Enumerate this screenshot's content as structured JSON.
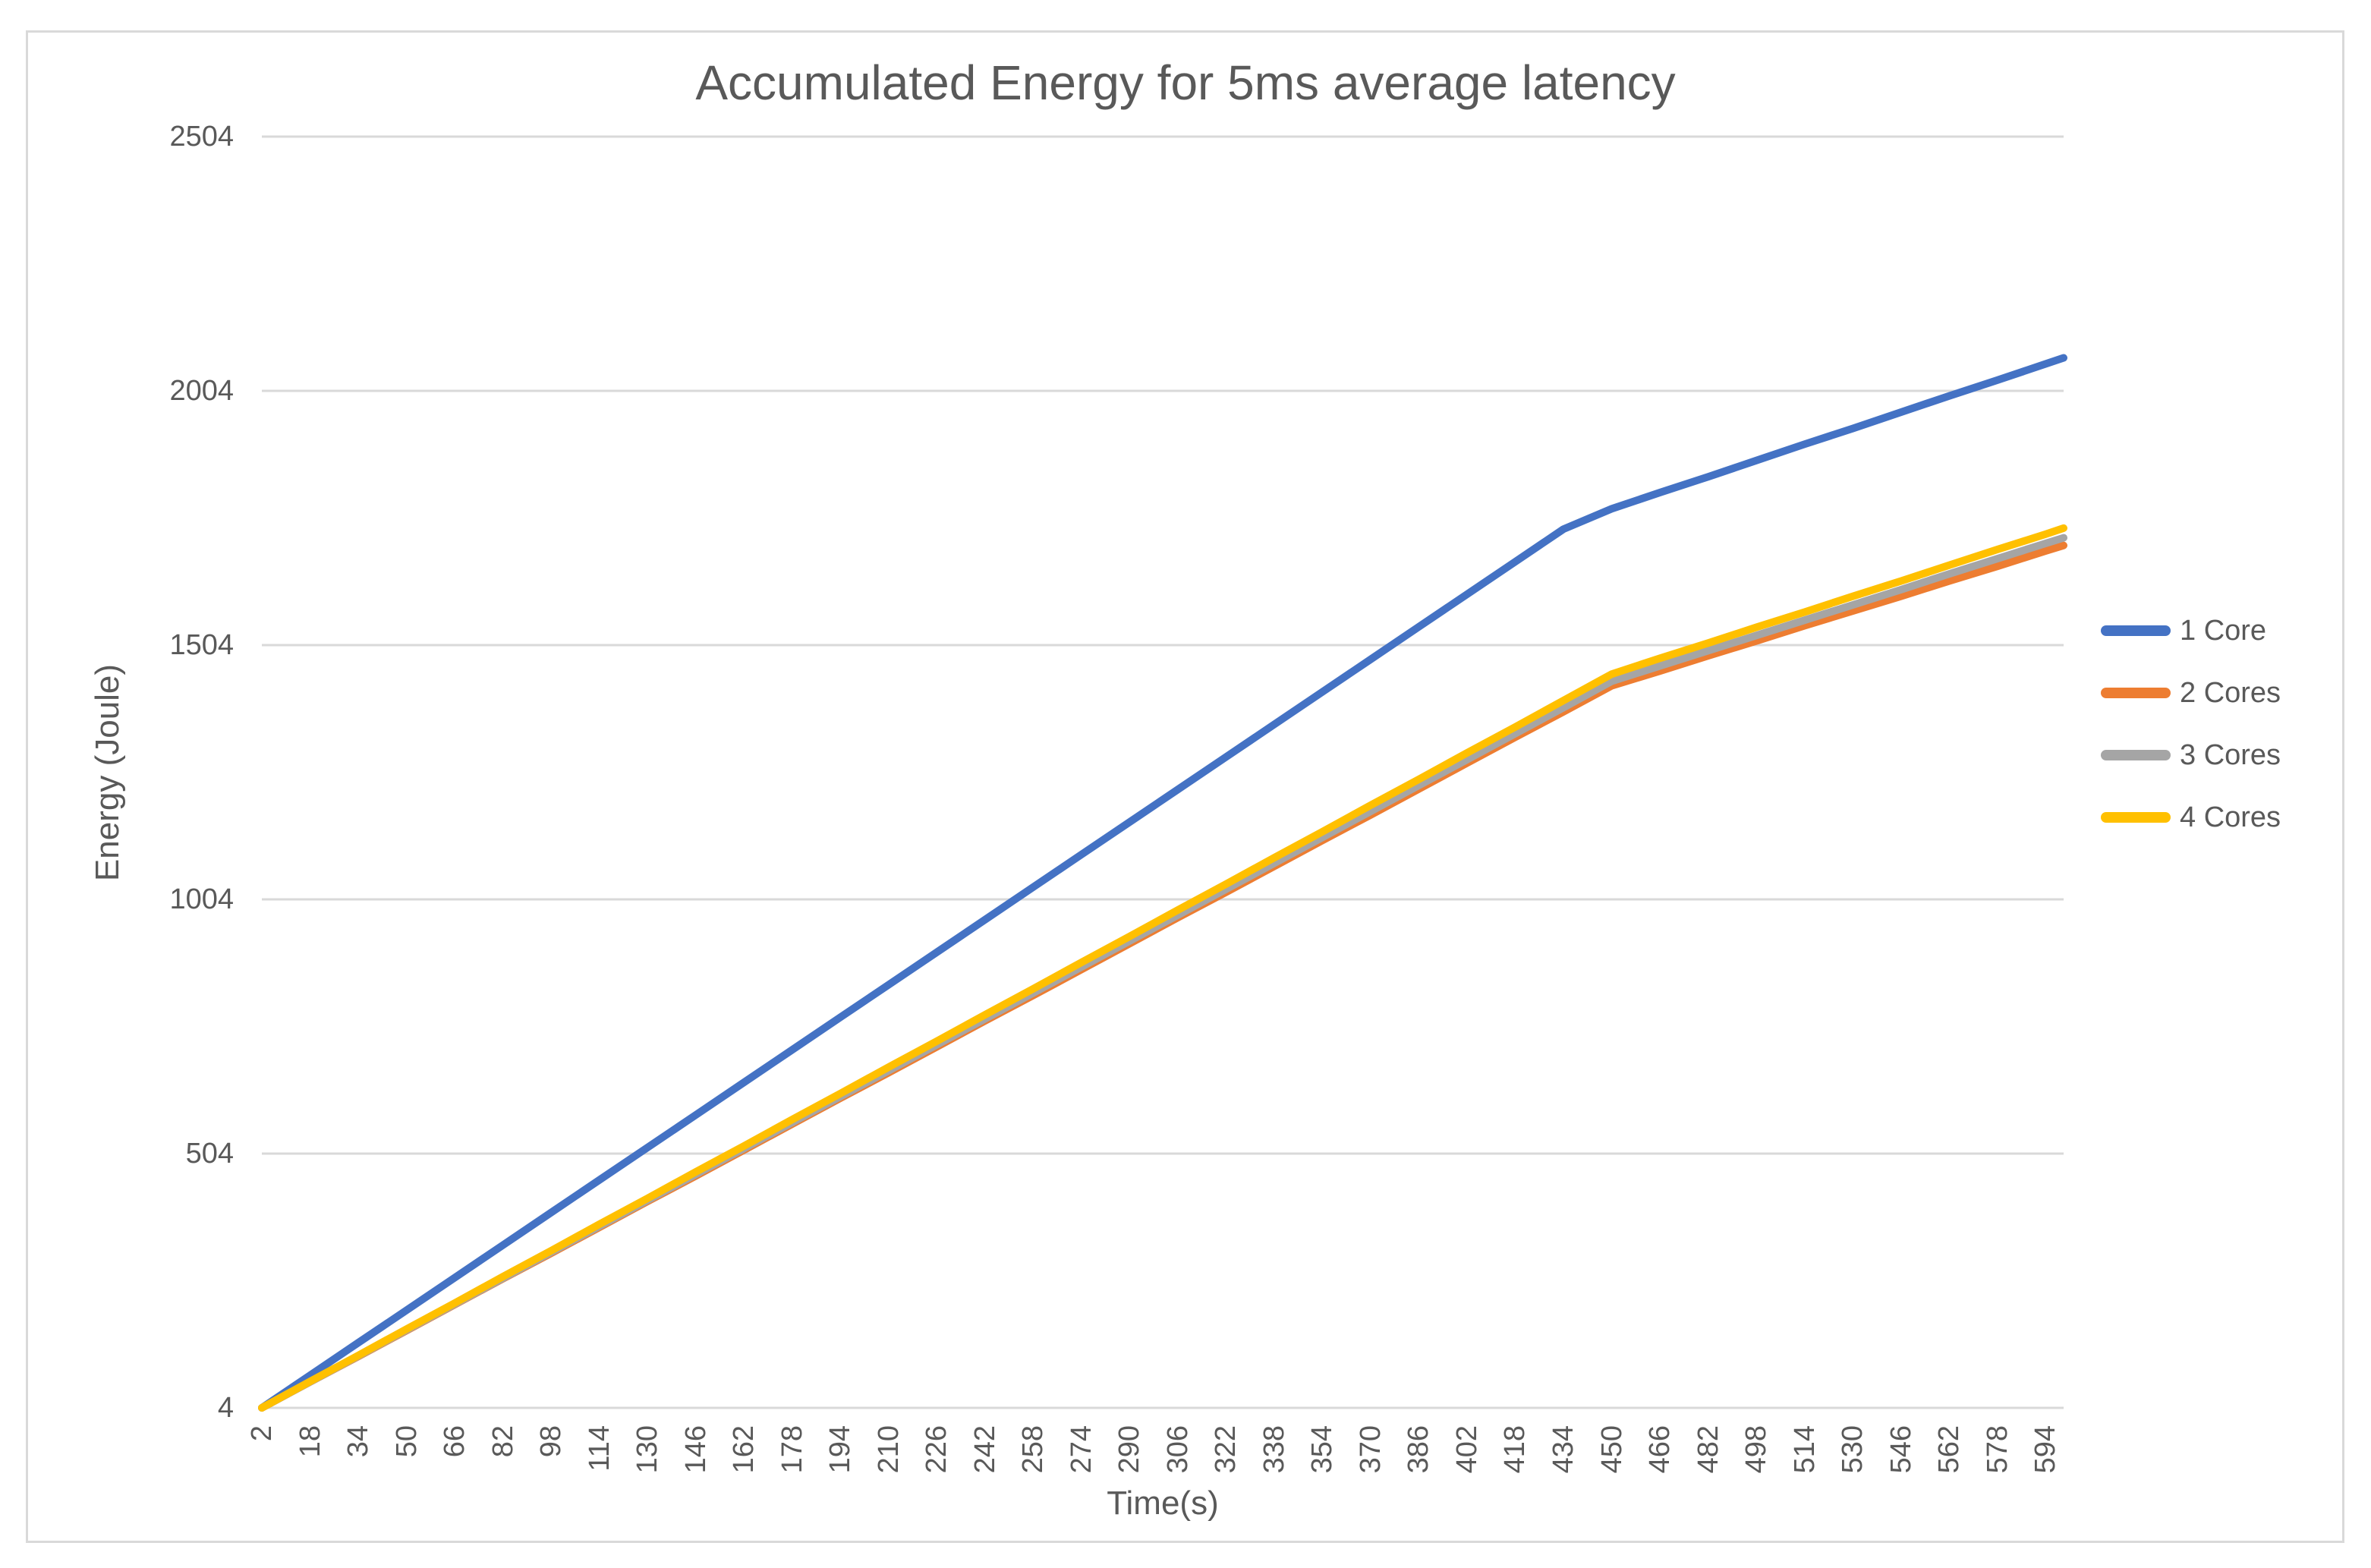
{
  "title": "Accumulated Energy for 5ms average latency",
  "x_axis": {
    "title": "Time(s)",
    "tick_labels": [
      "2",
      "18",
      "34",
      "50",
      "66",
      "82",
      "98",
      "114",
      "130",
      "146",
      "162",
      "178",
      "194",
      "210",
      "226",
      "242",
      "258",
      "274",
      "290",
      "306",
      "322",
      "338",
      "354",
      "370",
      "386",
      "402",
      "418",
      "434",
      "450",
      "466",
      "482",
      "498",
      "514",
      "530",
      "546",
      "562",
      "578",
      "594"
    ]
  },
  "y_axis": {
    "title": "Energy (Joule)",
    "tick_labels": [
      "2504",
      "2004",
      "1504",
      "1004",
      "504",
      "4"
    ]
  },
  "legend": [
    {
      "label": "1 Core",
      "color": "#4472C4"
    },
    {
      "label": "2 Cores",
      "color": "#ED7D31"
    },
    {
      "label": "3 Cores",
      "color": "#A5A5A5"
    },
    {
      "label": "4 Cores",
      "color": "#FFC000"
    }
  ],
  "colors": {
    "grid": "#D9D9D9",
    "frame": "#D9D9D9",
    "text": "#595959"
  },
  "chart_data": {
    "type": "line",
    "title": "Accumulated Energy for 5ms average latency",
    "xlabel": "Time(s)",
    "ylabel": "Energy (Joule)",
    "xlim": [
      2,
      600
    ],
    "ylim": [
      4,
      2504
    ],
    "grid": true,
    "legend_position": "right",
    "x": [
      2,
      18,
      34,
      50,
      66,
      82,
      98,
      114,
      130,
      146,
      162,
      178,
      194,
      210,
      226,
      242,
      258,
      274,
      290,
      306,
      322,
      338,
      354,
      370,
      386,
      402,
      418,
      434,
      450,
      466,
      482,
      498,
      514,
      530,
      546,
      562,
      578,
      594,
      600
    ],
    "series": [
      {
        "name": "1 Core",
        "color": "#4472C4",
        "values": [
          4,
          68,
          132,
          196,
          260,
          324,
          388,
          452,
          516,
          580,
          644,
          708,
          772,
          836,
          900,
          964,
          1028,
          1092,
          1156,
          1220,
          1284,
          1348,
          1412,
          1476,
          1540,
          1604,
          1668,
          1732,
          1772,
          1804,
          1835,
          1867,
          1899,
          1930,
          1962,
          1994,
          2025,
          2057,
          2069
        ]
      },
      {
        "name": "2 Cores",
        "color": "#ED7D31",
        "values": [
          4,
          55,
          105,
          156,
          207,
          258,
          308,
          359,
          410,
          460,
          511,
          562,
          613,
          663,
          714,
          765,
          815,
          866,
          917,
          968,
          1018,
          1069,
          1120,
          1170,
          1221,
          1272,
          1323,
          1373,
          1424,
          1453,
          1483,
          1512,
          1542,
          1571,
          1600,
          1630,
          1659,
          1689,
          1700
        ]
      },
      {
        "name": "3 Cores",
        "color": "#A5A5A5",
        "values": [
          4,
          55,
          106,
          157,
          208,
          259,
          310,
          361,
          412,
          463,
          514,
          565,
          616,
          667,
          718,
          769,
          820,
          871,
          922,
          973,
          1024,
          1075,
          1126,
          1177,
          1228,
          1279,
          1330,
          1381,
          1433,
          1463,
          1493,
          1523,
          1553,
          1583,
          1613,
          1644,
          1674,
          1704,
          1715
        ]
      },
      {
        "name": "4 Cores",
        "color": "#FFC000",
        "values": [
          4,
          56,
          107,
          159,
          210,
          262,
          313,
          365,
          416,
          468,
          519,
          571,
          622,
          674,
          725,
          777,
          828,
          880,
          931,
          983,
          1034,
          1086,
          1137,
          1189,
          1240,
          1292,
          1343,
          1395,
          1447,
          1478,
          1508,
          1539,
          1569,
          1600,
          1630,
          1661,
          1692,
          1722,
          1734
        ]
      }
    ]
  }
}
